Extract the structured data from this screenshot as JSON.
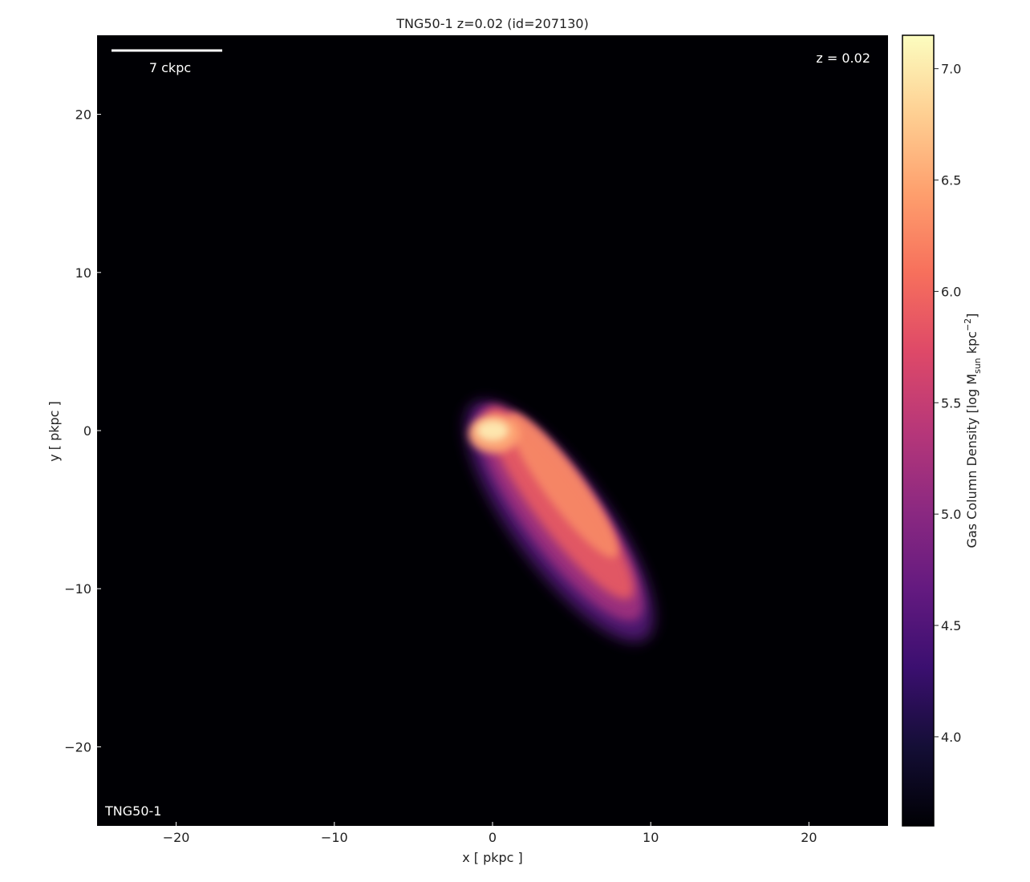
{
  "chart_data": {
    "type": "heatmap",
    "title": "TNG50-1 z=0.02 (id=207130)",
    "xlabel": "x [ pkpc ]",
    "ylabel": "y [ pkpc ]",
    "xlim": [
      -25,
      25
    ],
    "ylim": [
      -25,
      25
    ],
    "xticks": [
      -20,
      -10,
      0,
      10,
      20
    ],
    "yticks": [
      -20,
      -10,
      0,
      10,
      20
    ],
    "x_tick_labels": [
      "−20",
      "−10",
      "0",
      "10",
      "20"
    ],
    "y_tick_labels": [
      "20",
      "10",
      "0",
      "−10",
      "−20"
    ],
    "colormap": "magma",
    "colorbar": {
      "label_prefix": "Gas Column Density [log M",
      "label_sub": "sun",
      "label_mid": " kpc",
      "label_sup": "−2",
      "label_suffix": "]",
      "range": [
        3.6,
        7.15
      ],
      "ticks": [
        4.0,
        4.5,
        5.0,
        5.5,
        6.0,
        6.5,
        7.0
      ],
      "tick_labels": [
        "4.0",
        "4.5",
        "5.0",
        "5.5",
        "6.0",
        "6.5",
        "7.0"
      ]
    },
    "annotations": {
      "scalebar_label": "7 ckpc",
      "scalebar_length_pkpc": 7,
      "redshift_label": "z = 0.02",
      "simulation_label": "TNG50-1"
    },
    "gas_structure": {
      "description_type": "elongated blob",
      "peak_center": [
        0,
        0
      ],
      "peak_log_density": 7.1,
      "extent_from": [
        0,
        0
      ],
      "extent_to": [
        8.5,
        -11.5
      ],
      "min_visible_log_density": 4.3
    }
  }
}
